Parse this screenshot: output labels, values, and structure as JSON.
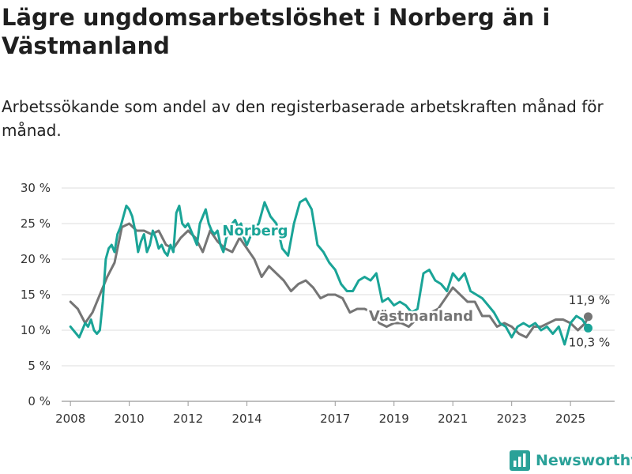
{
  "title": "Lägre ungdomsarbetslöshet i Norberg än i Västmanland",
  "subtitle": "Arbetssökande som andel av den registerbaserade arbetskraften månad för månad.",
  "brand": {
    "name": "Newsworthy",
    "icon": "bar-chart-logo-icon",
    "color": "#2aa198"
  },
  "chart_data": {
    "type": "line",
    "xlim": [
      2007.7,
      2026.5
    ],
    "ylim": [
      0,
      30
    ],
    "y_ticks": [
      0,
      5,
      10,
      15,
      20,
      25,
      30
    ],
    "y_tick_labels": [
      "0 %",
      "5 %",
      "10 %",
      "15 %",
      "20 %",
      "25 %",
      "30 %"
    ],
    "x_ticks": [
      2008,
      2010,
      2012,
      2014,
      2017,
      2019,
      2021,
      2023,
      2025
    ],
    "x_tick_labels": [
      "2008",
      "2010",
      "2012",
      "2014",
      "2017",
      "2019",
      "2021",
      "2023",
      "2025"
    ],
    "grid": "horizontal",
    "series": [
      {
        "name": "Västmanland",
        "color": "#757575",
        "end_label": "11,9 %",
        "x": [
          2008.0,
          2008.25,
          2008.5,
          2008.75,
          2009.0,
          2009.25,
          2009.5,
          2009.75,
          2010.0,
          2010.25,
          2010.5,
          2010.75,
          2011.0,
          2011.25,
          2011.5,
          2011.75,
          2012.0,
          2012.25,
          2012.5,
          2012.75,
          2013.0,
          2013.25,
          2013.5,
          2013.75,
          2014.0,
          2014.25,
          2014.5,
          2014.75,
          2015.0,
          2015.25,
          2015.5,
          2015.75,
          2016.0,
          2016.25,
          2016.5,
          2016.75,
          2017.0,
          2017.25,
          2017.5,
          2017.75,
          2018.0,
          2018.25,
          2018.5,
          2018.75,
          2019.0,
          2019.25,
          2019.5,
          2019.75,
          2020.0,
          2020.25,
          2020.5,
          2020.75,
          2021.0,
          2021.25,
          2021.5,
          2021.75,
          2022.0,
          2022.25,
          2022.5,
          2022.75,
          2023.0,
          2023.25,
          2023.5,
          2023.75,
          2024.0,
          2024.25,
          2024.5,
          2024.75,
          2025.0,
          2025.25,
          2025.5,
          2025.6
        ],
        "values": [
          14.0,
          13.0,
          11.0,
          12.5,
          15.0,
          17.5,
          19.5,
          24.5,
          25.0,
          24.0,
          24.0,
          23.5,
          24.0,
          22.0,
          21.5,
          23.0,
          24.0,
          23.0,
          21.0,
          24.0,
          22.5,
          21.5,
          21.0,
          23.0,
          21.5,
          20.0,
          17.5,
          19.0,
          18.0,
          17.0,
          15.5,
          16.5,
          17.0,
          16.0,
          14.5,
          15.0,
          15.0,
          14.5,
          12.5,
          13.0,
          13.0,
          12.5,
          11.0,
          10.5,
          11.0,
          11.0,
          10.5,
          11.5,
          12.0,
          12.5,
          13.0,
          14.5,
          16.0,
          15.0,
          14.0,
          14.0,
          12.0,
          12.0,
          10.5,
          11.0,
          10.5,
          9.5,
          9.0,
          10.5,
          10.5,
          11.0,
          11.5,
          11.5,
          11.0,
          10.0,
          11.0,
          11.9
        ]
      },
      {
        "name": "Norberg",
        "color": "#1aa497",
        "end_label": "10,3 %",
        "x": [
          2008.0,
          2008.1,
          2008.2,
          2008.3,
          2008.4,
          2008.5,
          2008.6,
          2008.7,
          2008.8,
          2008.9,
          2009.0,
          2009.1,
          2009.2,
          2009.3,
          2009.4,
          2009.5,
          2009.6,
          2009.7,
          2009.8,
          2009.9,
          2010.0,
          2010.1,
          2010.2,
          2010.3,
          2010.4,
          2010.5,
          2010.6,
          2010.7,
          2010.8,
          2010.9,
          2011.0,
          2011.1,
          2011.2,
          2011.3,
          2011.4,
          2011.5,
          2011.6,
          2011.7,
          2011.8,
          2011.9,
          2012.0,
          2012.1,
          2012.2,
          2012.3,
          2012.4,
          2012.5,
          2012.6,
          2012.7,
          2012.8,
          2012.9,
          2013.0,
          2013.1,
          2013.2,
          2013.3,
          2013.4,
          2013.5,
          2013.6,
          2013.7,
          2013.8,
          2013.9,
          2014.0,
          2014.2,
          2014.4,
          2014.6,
          2014.8,
          2015.0,
          2015.2,
          2015.4,
          2015.6,
          2015.8,
          2016.0,
          2016.2,
          2016.4,
          2016.6,
          2016.8,
          2017.0,
          2017.2,
          2017.4,
          2017.6,
          2017.8,
          2018.0,
          2018.2,
          2018.4,
          2018.6,
          2018.8,
          2019.0,
          2019.2,
          2019.4,
          2019.6,
          2019.8,
          2020.0,
          2020.2,
          2020.4,
          2020.6,
          2020.8,
          2021.0,
          2021.2,
          2021.4,
          2021.6,
          2021.8,
          2022.0,
          2022.2,
          2022.4,
          2022.6,
          2022.8,
          2023.0,
          2023.2,
          2023.4,
          2023.6,
          2023.8,
          2024.0,
          2024.2,
          2024.4,
          2024.6,
          2024.8,
          2025.0,
          2025.2,
          2025.4,
          2025.6
        ],
        "values": [
          10.5,
          10.0,
          9.5,
          9.0,
          10.0,
          11.0,
          10.5,
          11.5,
          10.0,
          9.5,
          10.0,
          14.0,
          20.0,
          21.5,
          22.0,
          21.0,
          23.5,
          24.5,
          26.0,
          27.5,
          27.0,
          26.0,
          24.0,
          21.0,
          22.5,
          23.5,
          21.0,
          22.0,
          24.0,
          23.0,
          21.5,
          22.0,
          21.0,
          20.5,
          22.0,
          21.0,
          26.5,
          27.5,
          25.0,
          24.5,
          25.0,
          24.0,
          23.0,
          22.0,
          25.0,
          26.0,
          27.0,
          25.0,
          24.0,
          23.5,
          24.0,
          22.0,
          21.0,
          23.0,
          24.0,
          25.0,
          25.5,
          24.5,
          25.0,
          23.0,
          22.0,
          24.0,
          25.0,
          28.0,
          26.0,
          25.0,
          21.5,
          20.5,
          25.0,
          28.0,
          28.5,
          27.0,
          22.0,
          21.0,
          19.5,
          18.5,
          16.5,
          15.5,
          15.5,
          17.0,
          17.5,
          17.0,
          18.0,
          14.0,
          14.5,
          13.5,
          14.0,
          13.5,
          12.5,
          13.0,
          18.0,
          18.5,
          17.0,
          16.5,
          15.5,
          18.0,
          17.0,
          18.0,
          15.5,
          15.0,
          14.5,
          13.5,
          12.5,
          11.0,
          10.5,
          9.0,
          10.5,
          11.0,
          10.5,
          11.0,
          10.0,
          10.5,
          9.5,
          10.5,
          8.0,
          11.0,
          12.0,
          11.5,
          10.3
        ]
      }
    ]
  }
}
